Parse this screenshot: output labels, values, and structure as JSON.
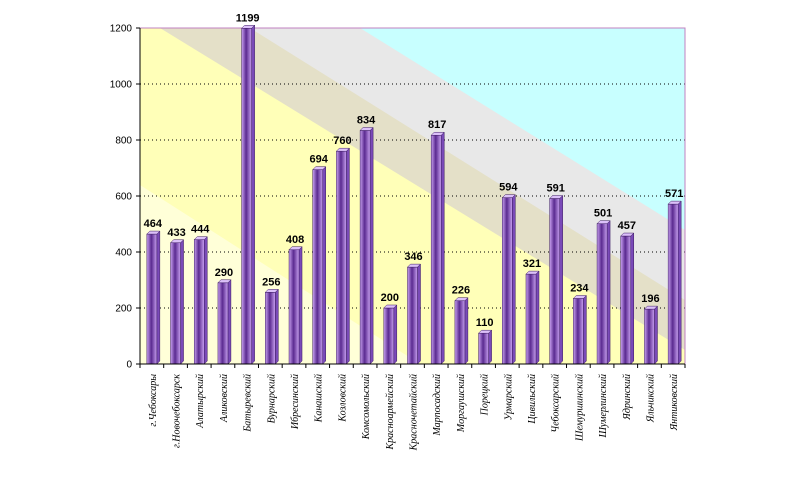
{
  "chart_data": {
    "type": "bar",
    "title": "",
    "xlabel": "",
    "ylabel": "",
    "ylim": [
      0,
      1200
    ],
    "yticks": [
      0,
      200,
      400,
      600,
      800,
      1000,
      1200
    ],
    "grid": true,
    "categories": [
      "г.Чебоксары",
      "г.Новочебоксарск",
      "Алатырский",
      "Аликовский",
      "Батыревский",
      "Вурнарский",
      "Ибресинский",
      "Канашский",
      "Козловский",
      "Комсомольский",
      "Красноармейский",
      "Красночетайский",
      "Марпосадский",
      "Моргаушский",
      "Порецкий",
      "Урмарский",
      "Цивильский",
      "Чебоксарский",
      "Шемуршинский",
      "Шумерлинский",
      "Ядринский",
      "Яльчикский",
      "Янтиковский"
    ],
    "values": [
      464,
      433,
      444,
      290,
      1199,
      256,
      408,
      694,
      760,
      834,
      200,
      346,
      817,
      226,
      110,
      594,
      321,
      591,
      234,
      501,
      457,
      196,
      571
    ],
    "colors": {
      "bar_front": "#c8a0f0",
      "bar_dark": "#5a2a90",
      "bar_top": "#dcc0fa",
      "bar_side": "#7a4ab8",
      "band_yellow": "#ffffb8",
      "band_yellow_light": "#ffffd8",
      "band_tan": "#e4e0c8",
      "band_grey": "#e8e8e8",
      "band_cyan": "#c8ffff",
      "border": "#c080c0"
    }
  }
}
